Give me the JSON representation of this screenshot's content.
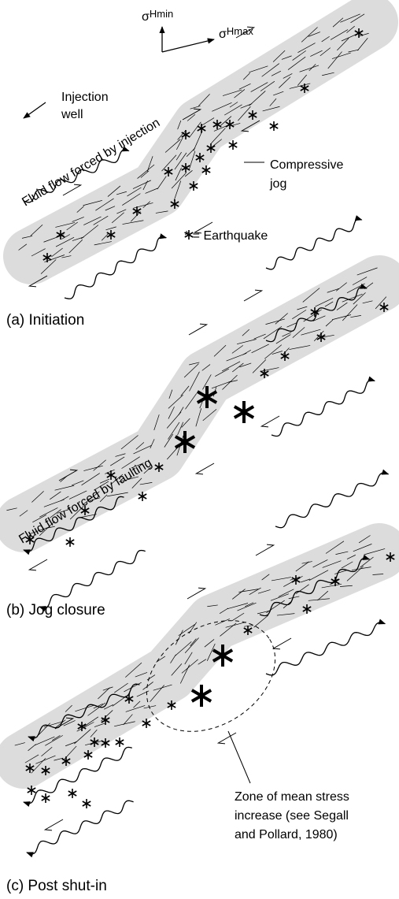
{
  "axes": {
    "sigma": "σ",
    "min_subscript": "Hmin",
    "max_subscript": "Hmax"
  },
  "panels": [
    {
      "label": "(a)  Initiation",
      "annotations": {
        "injection_well": [
          "Injection",
          "well"
        ],
        "flow": "Fluid flow forced by injection",
        "jog": [
          "Compressive",
          "jog"
        ],
        "legend": "* = Earthquake"
      }
    },
    {
      "label": "(b)  Jog closure",
      "annotations": {
        "flow": "Fluid flow forced by faulting"
      }
    },
    {
      "label": "(c)  Post shut-in",
      "annotations": {
        "zone": [
          "Zone of mean stress",
          "increase (see Segall",
          "and Pollard, 1980)"
        ]
      }
    }
  ]
}
